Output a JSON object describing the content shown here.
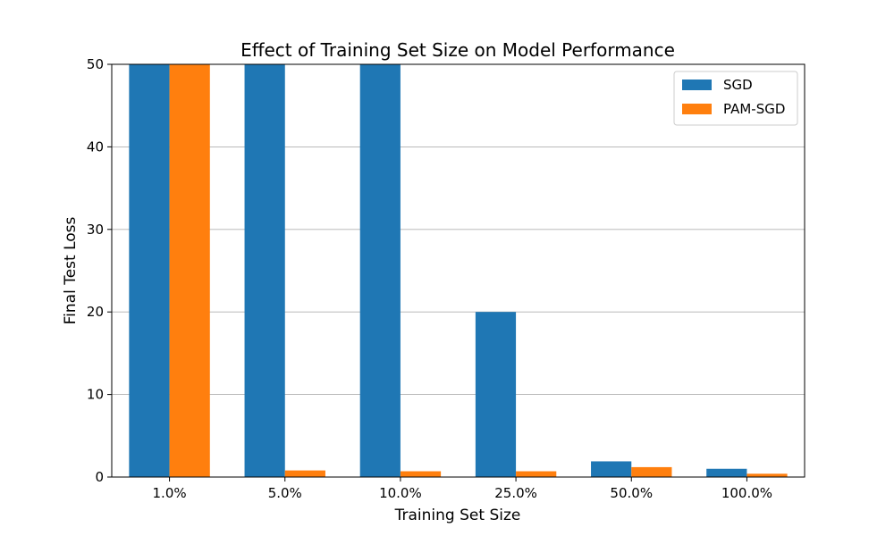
{
  "chart_data": {
    "type": "bar",
    "title": "Effect of Training Set Size on Model Performance",
    "xlabel": "Training Set Size",
    "ylabel": "Final Test Loss",
    "categories": [
      "1.0%",
      "5.0%",
      "10.0%",
      "25.0%",
      "50.0%",
      "100.0%"
    ],
    "ylim": [
      0,
      50
    ],
    "yticks": [
      0,
      10,
      20,
      30,
      40,
      50
    ],
    "grid": "y",
    "legend_position": "top-right",
    "series": [
      {
        "name": "SGD",
        "color": "#1f77b4",
        "values": [
          50,
          50,
          50,
          20,
          1.9,
          1.0
        ]
      },
      {
        "name": "PAM-SGD",
        "color": "#ff7f0e",
        "values": [
          50,
          0.8,
          0.7,
          0.7,
          1.2,
          0.4
        ]
      }
    ]
  }
}
